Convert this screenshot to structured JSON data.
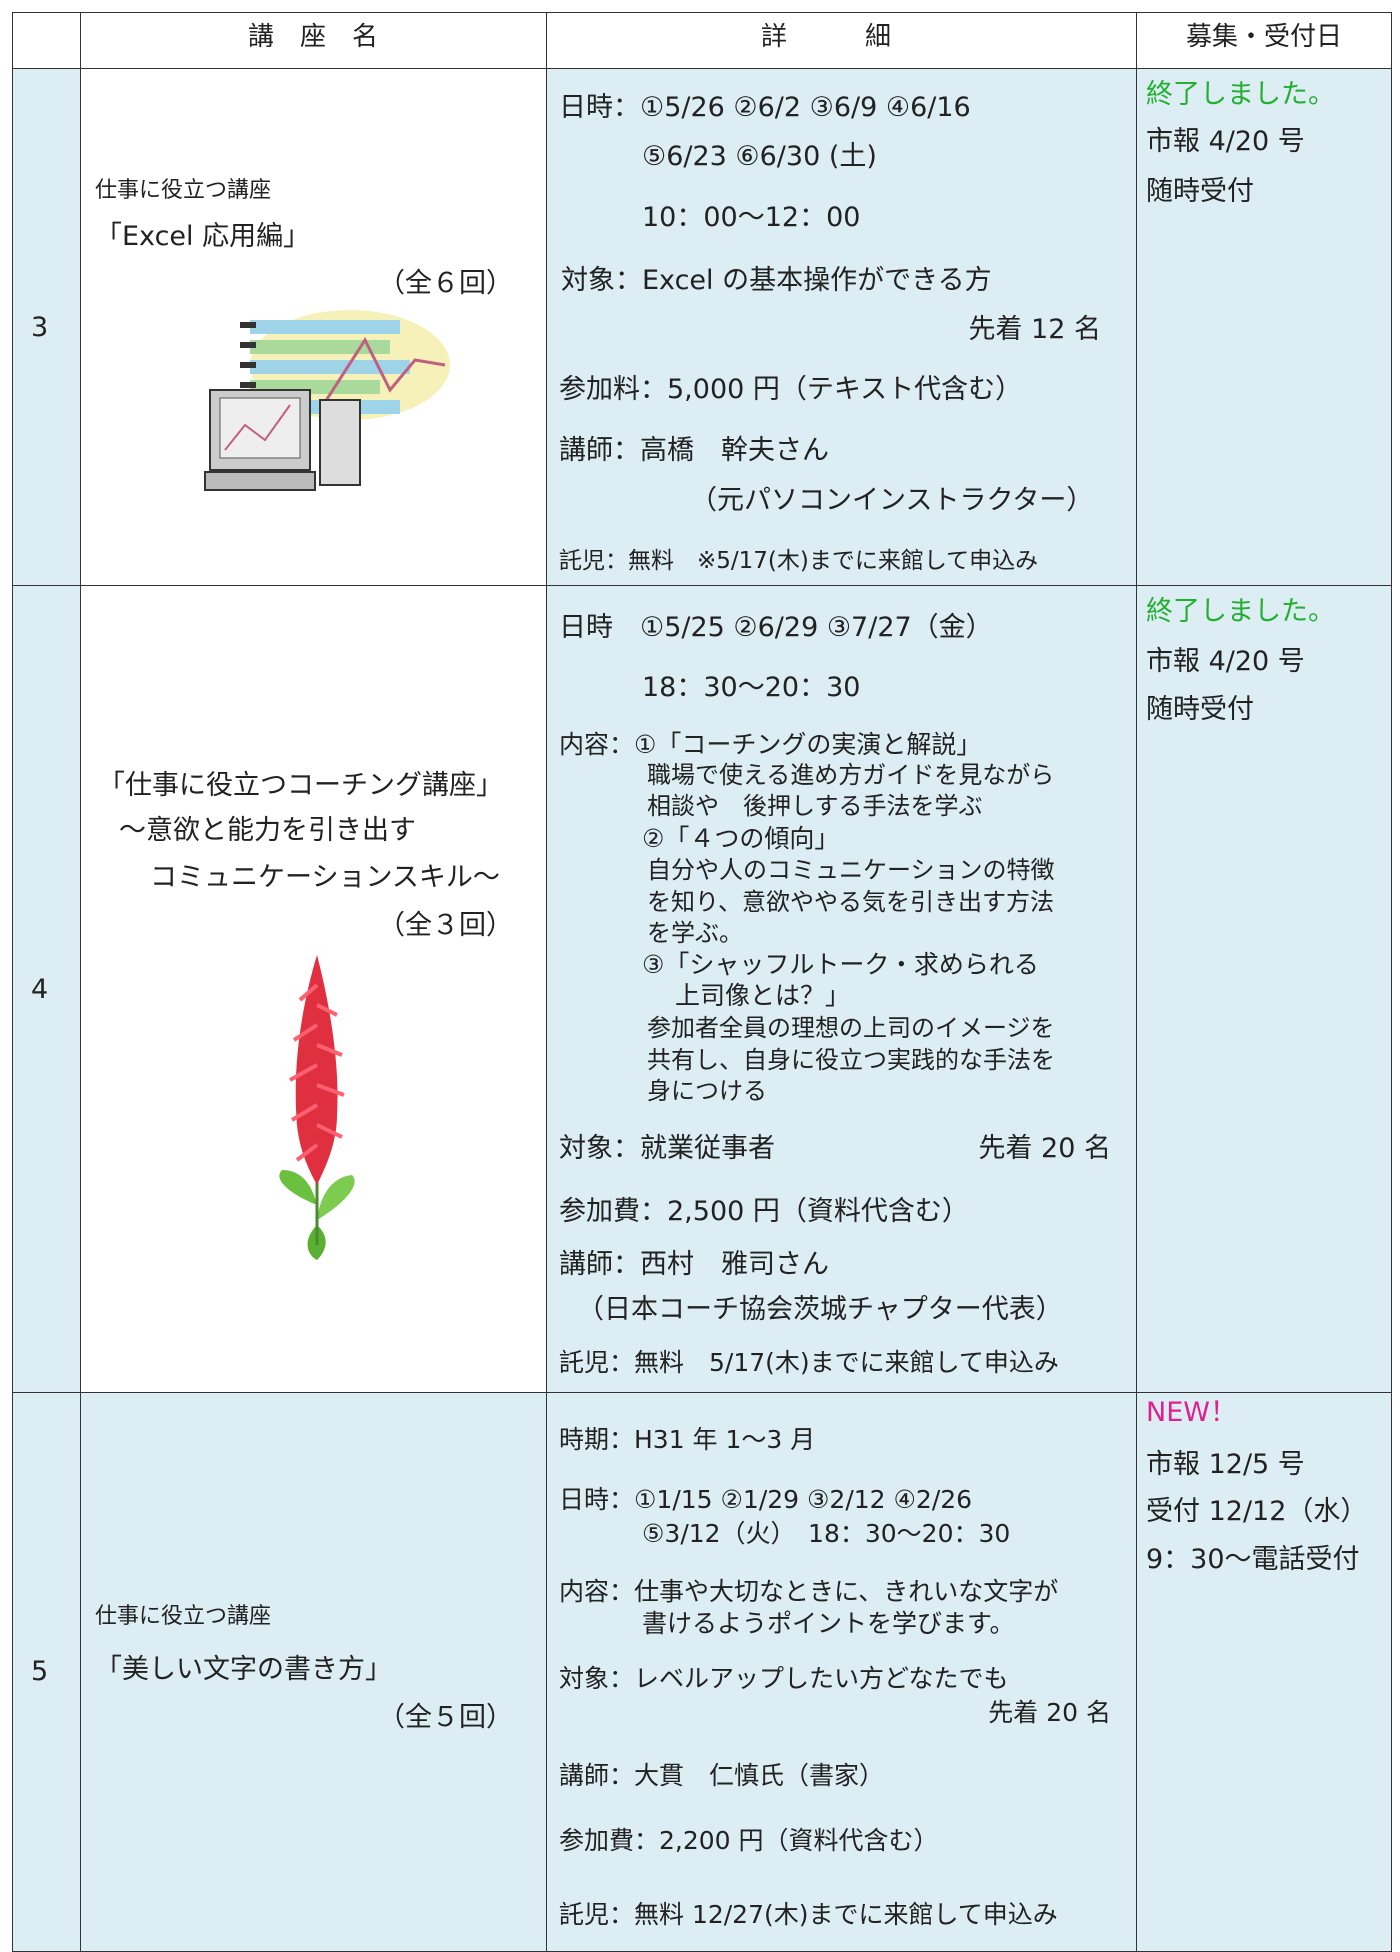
{
  "table": {
    "header": [
      "講　座　名",
      "詳　　　細",
      "募集・受付日"
    ],
    "rows": [
      {
        "no": "3",
        "name": [
          "仕事に役立つ講座",
          "「Excel 応用編」",
          "（全６回）"
        ],
        "details": [
          "日時：①5/26 ②6/2 ③6/9 ④6/16",
          "⑤6/23 ⑥6/30 (土)",
          "10：00～12：00",
          "対象：Excel の基本操作ができる方",
          "先着 12 名",
          "参加料：5,000 円（テキスト代含む）",
          "講師：高橋　幹夫さん",
          "（元パソコンインストラクター）",
          "託児：無料　※5/17(木)までに来館して申込み"
        ],
        "status": [
          "終了しました。",
          "市報 4/20 号",
          "随時受付"
        ]
      },
      {
        "no": "4",
        "name": [
          "「仕事に役立つコーチング講座」",
          "～意欲と能力を引き出す",
          "コミュニケーションスキル～",
          "（全３回）"
        ],
        "details": [
          "日時　①5/25 ②6/29 ③7/27（金）",
          "18：30～20：30",
          "内容：①「コーチングの実演と解説」",
          "職場で使える進め方ガイドを見ながら",
          "相談や　後押しする手法を学ぶ",
          "②「４つの傾向」",
          "自分や人のコミュニケーションの特徴",
          "を知り、意欲ややる気を引き出す方法",
          "を学ぶ。",
          "③「シャッフルトーク・求められる",
          "上司像とは？」",
          "参加者全員の理想の上司のイメージを",
          "共有し、自身に役立つ実践的な手法を",
          "身につける",
          "対象：就業従事者",
          "先着 20 名",
          "参加費：2,500 円（資料代含む）",
          "講師：西村　雅司さん",
          "（日本コーチ協会茨城チャプター代表）",
          "託児：無料　5/17(木)までに来館して申込み"
        ],
        "status": [
          "終了しました。",
          "市報 4/20 号",
          "随時受付"
        ]
      },
      {
        "no": "5",
        "name": [
          "仕事に役立つ講座",
          "「美しい文字の書き方」",
          "（全５回）"
        ],
        "details": [
          "時期：H31 年 1～3 月",
          "日時：①1/15 ②1/29 ③2/12 ④2/26",
          "⑤3/12（火）　18：30～20：30",
          "内容：仕事や大切なときに、きれいな文字が",
          "書けるようポイントを学びます。",
          "対象：レベルアップしたい方どなたでも",
          "先着 20 名",
          "講師：大貫　仁慎氏（書家）",
          "参加費：2,200 円（資料代含む）",
          "託児：無料 12/27(木)までに来館して申込み"
        ],
        "status": [
          "NEW！",
          "市報 12/5 号",
          "受付 12/12（水）",
          "9：30～電話受付"
        ]
      }
    ]
  }
}
